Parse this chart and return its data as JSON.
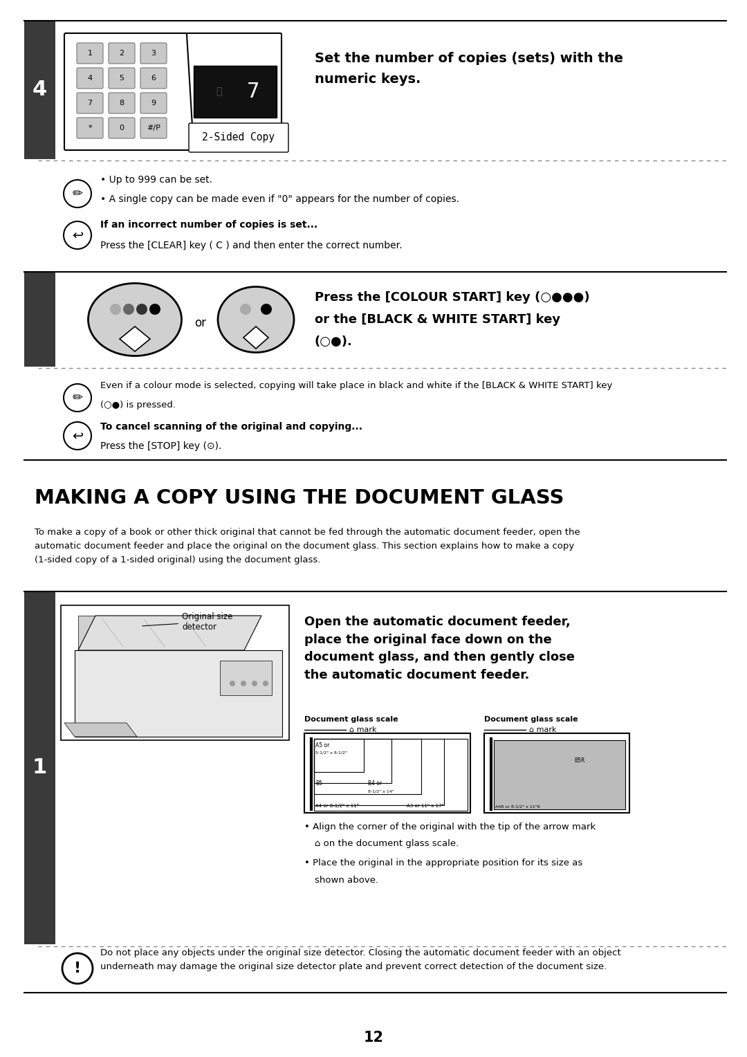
{
  "bg_color": "#ffffff",
  "dark_sidebar_color": "#3a3a3a",
  "section4": {
    "note1": "• Up to 999 can be set.",
    "note2": "• A single copy can be made even if \"0\" appears for the number of copies.",
    "caution_title": "If an incorrect number of copies is set...",
    "caution_text": "Press the [CLEAR] key ( C ) and then enter the correct number."
  },
  "section5": {
    "note": "Even if a colour mode is selected, copying will take place in black and white if the [BLACK & WHITE START] key\n(○●) is pressed.",
    "caution_title": "To cancel scanning of the original and copying...",
    "caution_text": "Press the [STOP] key (⊙)."
  },
  "page_number": "12"
}
